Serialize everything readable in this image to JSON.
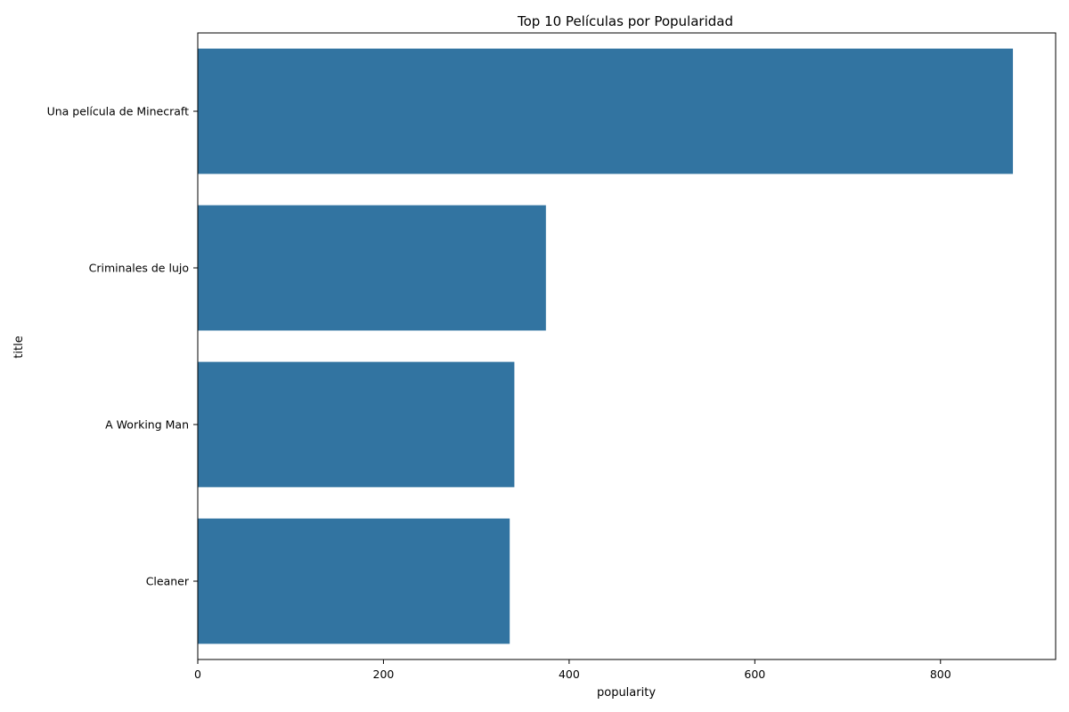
{
  "chart_data": {
    "type": "bar",
    "orientation": "horizontal",
    "title": "Top 10 Películas por Popularidad",
    "xlabel": "popularity",
    "ylabel": "title",
    "categories": [
      "Una película de Minecraft",
      "Criminales de lujo",
      "A Working Man",
      "Cleaner"
    ],
    "values": [
      878,
      375,
      341,
      336
    ],
    "xlim": [
      0,
      924
    ],
    "xticks": [
      0,
      200,
      400,
      600,
      800
    ],
    "grid": false,
    "bar_color": "#3274a1"
  }
}
